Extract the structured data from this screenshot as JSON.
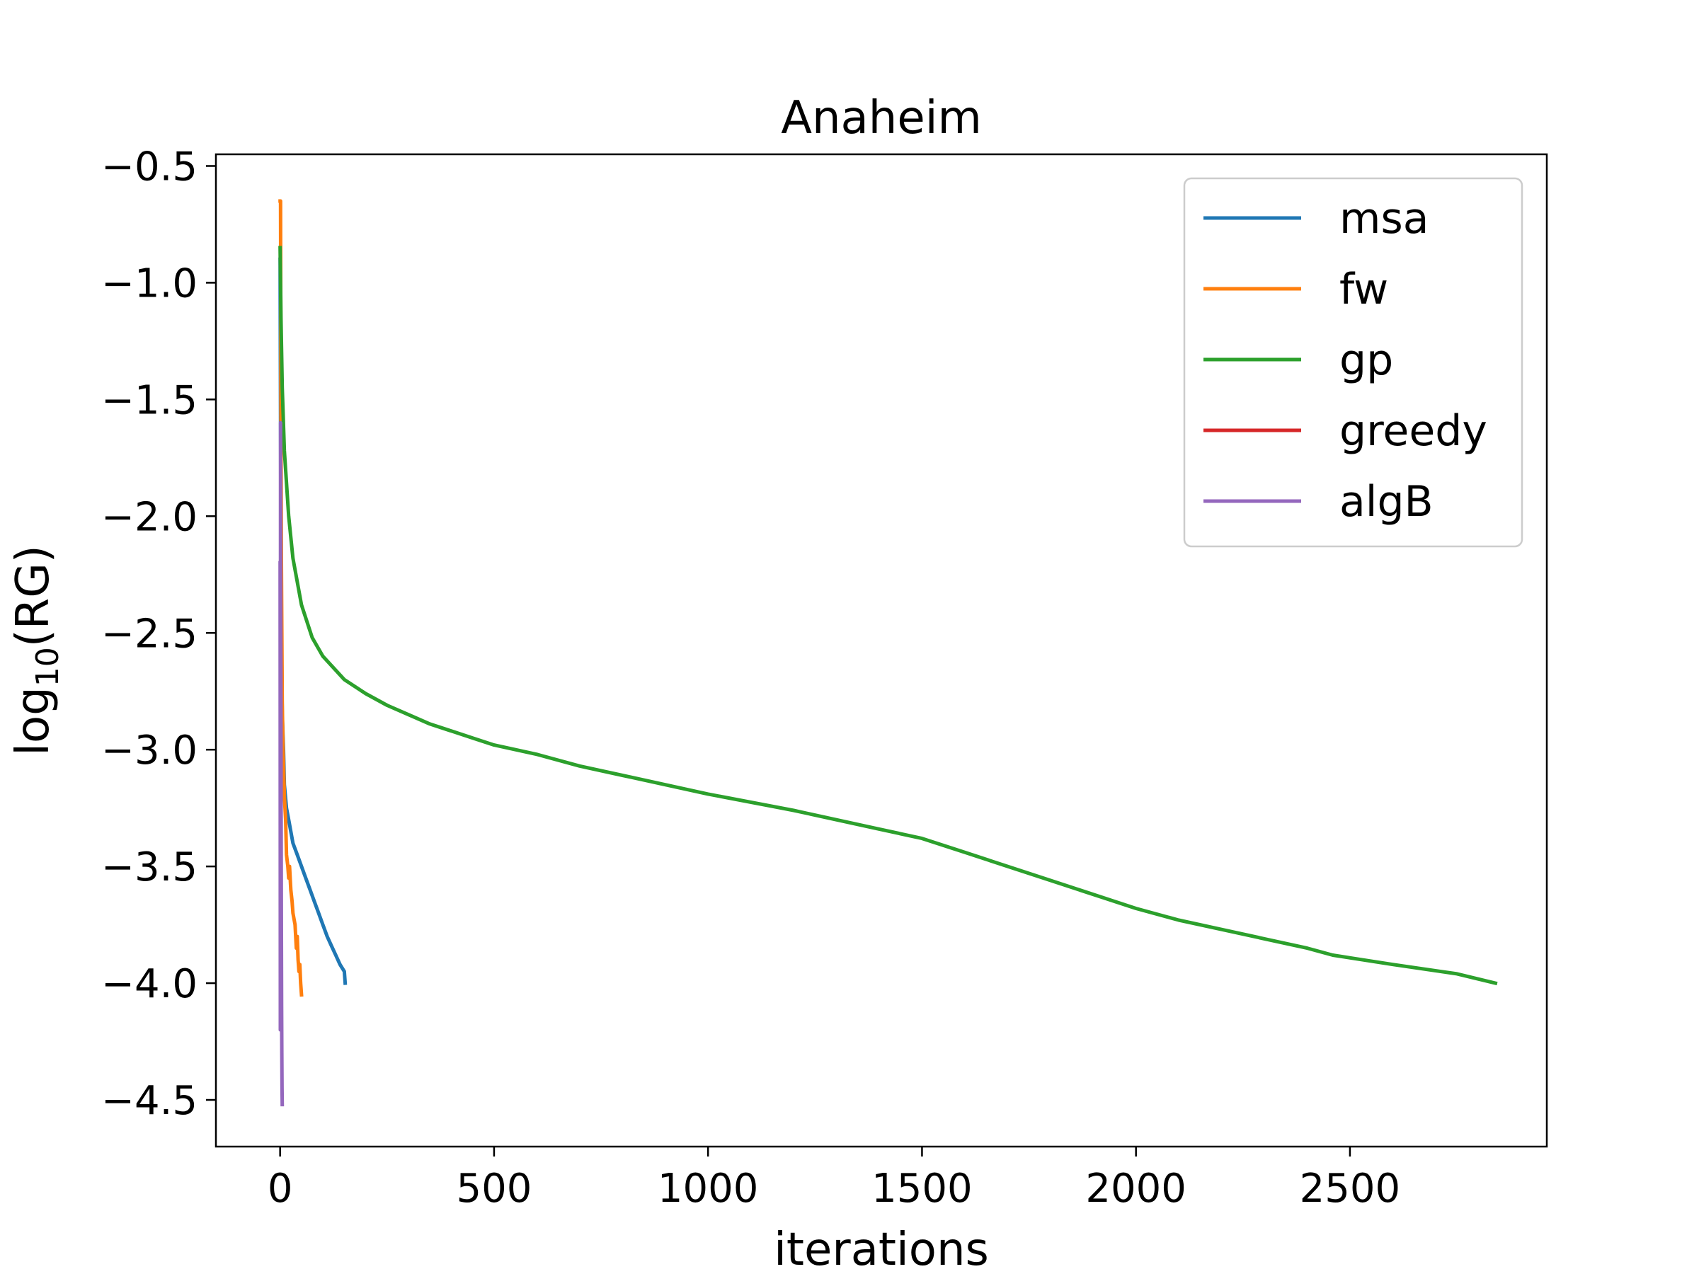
{
  "chart_data": {
    "type": "line",
    "title": "Anaheim",
    "xlabel": "iterations",
    "ylabel": {
      "base": "log",
      "subscript": "10",
      "rest": "(RG)"
    },
    "xlim": [
      -150,
      2960
    ],
    "ylim": [
      -4.7,
      -0.45
    ],
    "xticks": [
      0,
      500,
      1000,
      1500,
      2000,
      2500
    ],
    "yticks": [
      -0.5,
      -1.0,
      -1.5,
      -2.0,
      -2.5,
      -3.0,
      -3.5,
      -4.0,
      -4.5
    ],
    "xtick_labels": [
      "0",
      "500",
      "1000",
      "1500",
      "2000",
      "2500"
    ],
    "ytick_labels": [
      "−0.5",
      "−1.0",
      "−1.5",
      "−2.0",
      "−2.5",
      "−3.0",
      "−3.5",
      "−4.0",
      "−4.5"
    ],
    "legend_position": "top-right",
    "grid": false,
    "series": [
      {
        "name": "msa",
        "color": "#1f77b4",
        "x": [
          0,
          2,
          5,
          8,
          10,
          15,
          20,
          25,
          30,
          40,
          50,
          60,
          70,
          80,
          90,
          100,
          110,
          120,
          130,
          140,
          150,
          152
        ],
        "y": [
          -0.9,
          -2.3,
          -2.85,
          -3.0,
          -3.15,
          -3.25,
          -3.3,
          -3.35,
          -3.4,
          -3.45,
          -3.5,
          -3.55,
          -3.6,
          -3.65,
          -3.7,
          -3.75,
          -3.8,
          -3.84,
          -3.88,
          -3.92,
          -3.95,
          -4.0
        ]
      },
      {
        "name": "fw",
        "color": "#ff7f0e",
        "x": [
          0,
          1,
          2,
          3,
          4,
          5,
          7,
          10,
          13,
          15,
          18,
          20,
          22,
          25,
          28,
          30,
          35,
          38,
          40,
          42,
          44,
          46,
          48,
          50
        ],
        "y": [
          -0.65,
          -0.65,
          -1.6,
          -2.2,
          -2.5,
          -2.8,
          -3.0,
          -3.2,
          -3.3,
          -3.45,
          -3.5,
          -3.55,
          -3.5,
          -3.6,
          -3.65,
          -3.7,
          -3.75,
          -3.85,
          -3.8,
          -3.9,
          -3.95,
          -3.92,
          -4.0,
          -4.05
        ]
      },
      {
        "name": "gp",
        "color": "#2ca02c",
        "x": [
          0,
          2,
          5,
          10,
          20,
          30,
          50,
          75,
          100,
          150,
          200,
          250,
          300,
          350,
          400,
          450,
          500,
          550,
          600,
          700,
          800,
          900,
          1000,
          1200,
          1400,
          1500,
          1600,
          1800,
          2000,
          2100,
          2200,
          2300,
          2400,
          2460,
          2600,
          2750,
          2840
        ],
        "y": [
          -0.85,
          -1.15,
          -1.45,
          -1.72,
          -2.0,
          -2.18,
          -2.38,
          -2.52,
          -2.6,
          -2.7,
          -2.76,
          -2.81,
          -2.85,
          -2.89,
          -2.92,
          -2.95,
          -2.98,
          -3.0,
          -3.02,
          -3.07,
          -3.11,
          -3.15,
          -3.19,
          -3.26,
          -3.34,
          -3.38,
          -3.44,
          -3.56,
          -3.68,
          -3.73,
          -3.77,
          -3.81,
          -3.85,
          -3.88,
          -3.92,
          -3.96,
          -4.0
        ]
      },
      {
        "name": "greedy",
        "color": "#d62728",
        "x": [],
        "y": []
      },
      {
        "name": "algB",
        "color": "#9467bd",
        "x": [
          0,
          0.5,
          1,
          1.5,
          2,
          2.5,
          3,
          3.5,
          4,
          4.5,
          5
        ],
        "y": [
          -2.2,
          -4.2,
          -1.6,
          -2.3,
          -2.9,
          -3.4,
          -3.8,
          -4.1,
          -4.3,
          -4.45,
          -4.52
        ]
      }
    ]
  }
}
